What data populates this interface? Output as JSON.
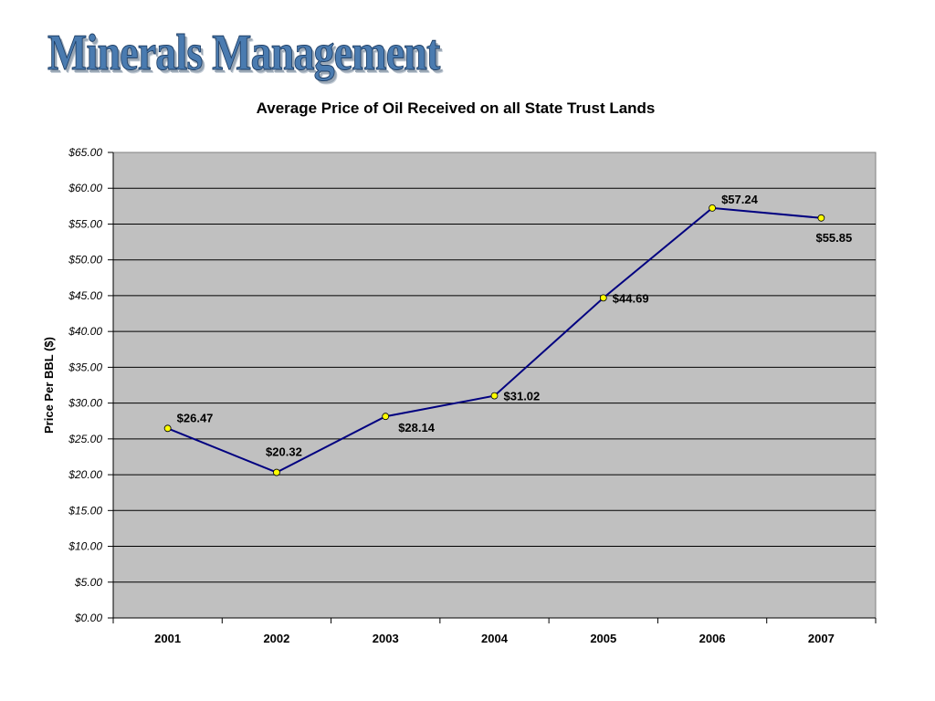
{
  "slide": {
    "title": "Minerals Management"
  },
  "colors": {
    "plot_background": "#c0c0c0",
    "gridline": "#000000",
    "series_line": "#000080",
    "marker_fill": "#ffff00",
    "title_fill": "#4a7bb0"
  },
  "chart_data": {
    "type": "line",
    "title": "Average Price of Oil Received on all State Trust Lands",
    "xlabel": "",
    "ylabel": "Price Per BBL ($)",
    "categories": [
      "2001",
      "2002",
      "2003",
      "2004",
      "2005",
      "2006",
      "2007"
    ],
    "series": [
      {
        "values": [
          26.47,
          20.32,
          28.14,
          31.02,
          44.69,
          57.24,
          55.85
        ],
        "data_labels": [
          "$26.47",
          "$20.32",
          "$28.14",
          "$31.02",
          "$44.69",
          "$57.24",
          "$55.85"
        ]
      }
    ],
    "ylim": [
      0,
      65
    ],
    "ytick_step": 5,
    "yticks": [
      "$0.00",
      "$5.00",
      "$10.00",
      "$15.00",
      "$20.00",
      "$25.00",
      "$30.00",
      "$35.00",
      "$40.00",
      "$45.00",
      "$50.00",
      "$55.00",
      "$60.00",
      "$65.00"
    ],
    "grid": true,
    "legend": "none"
  }
}
